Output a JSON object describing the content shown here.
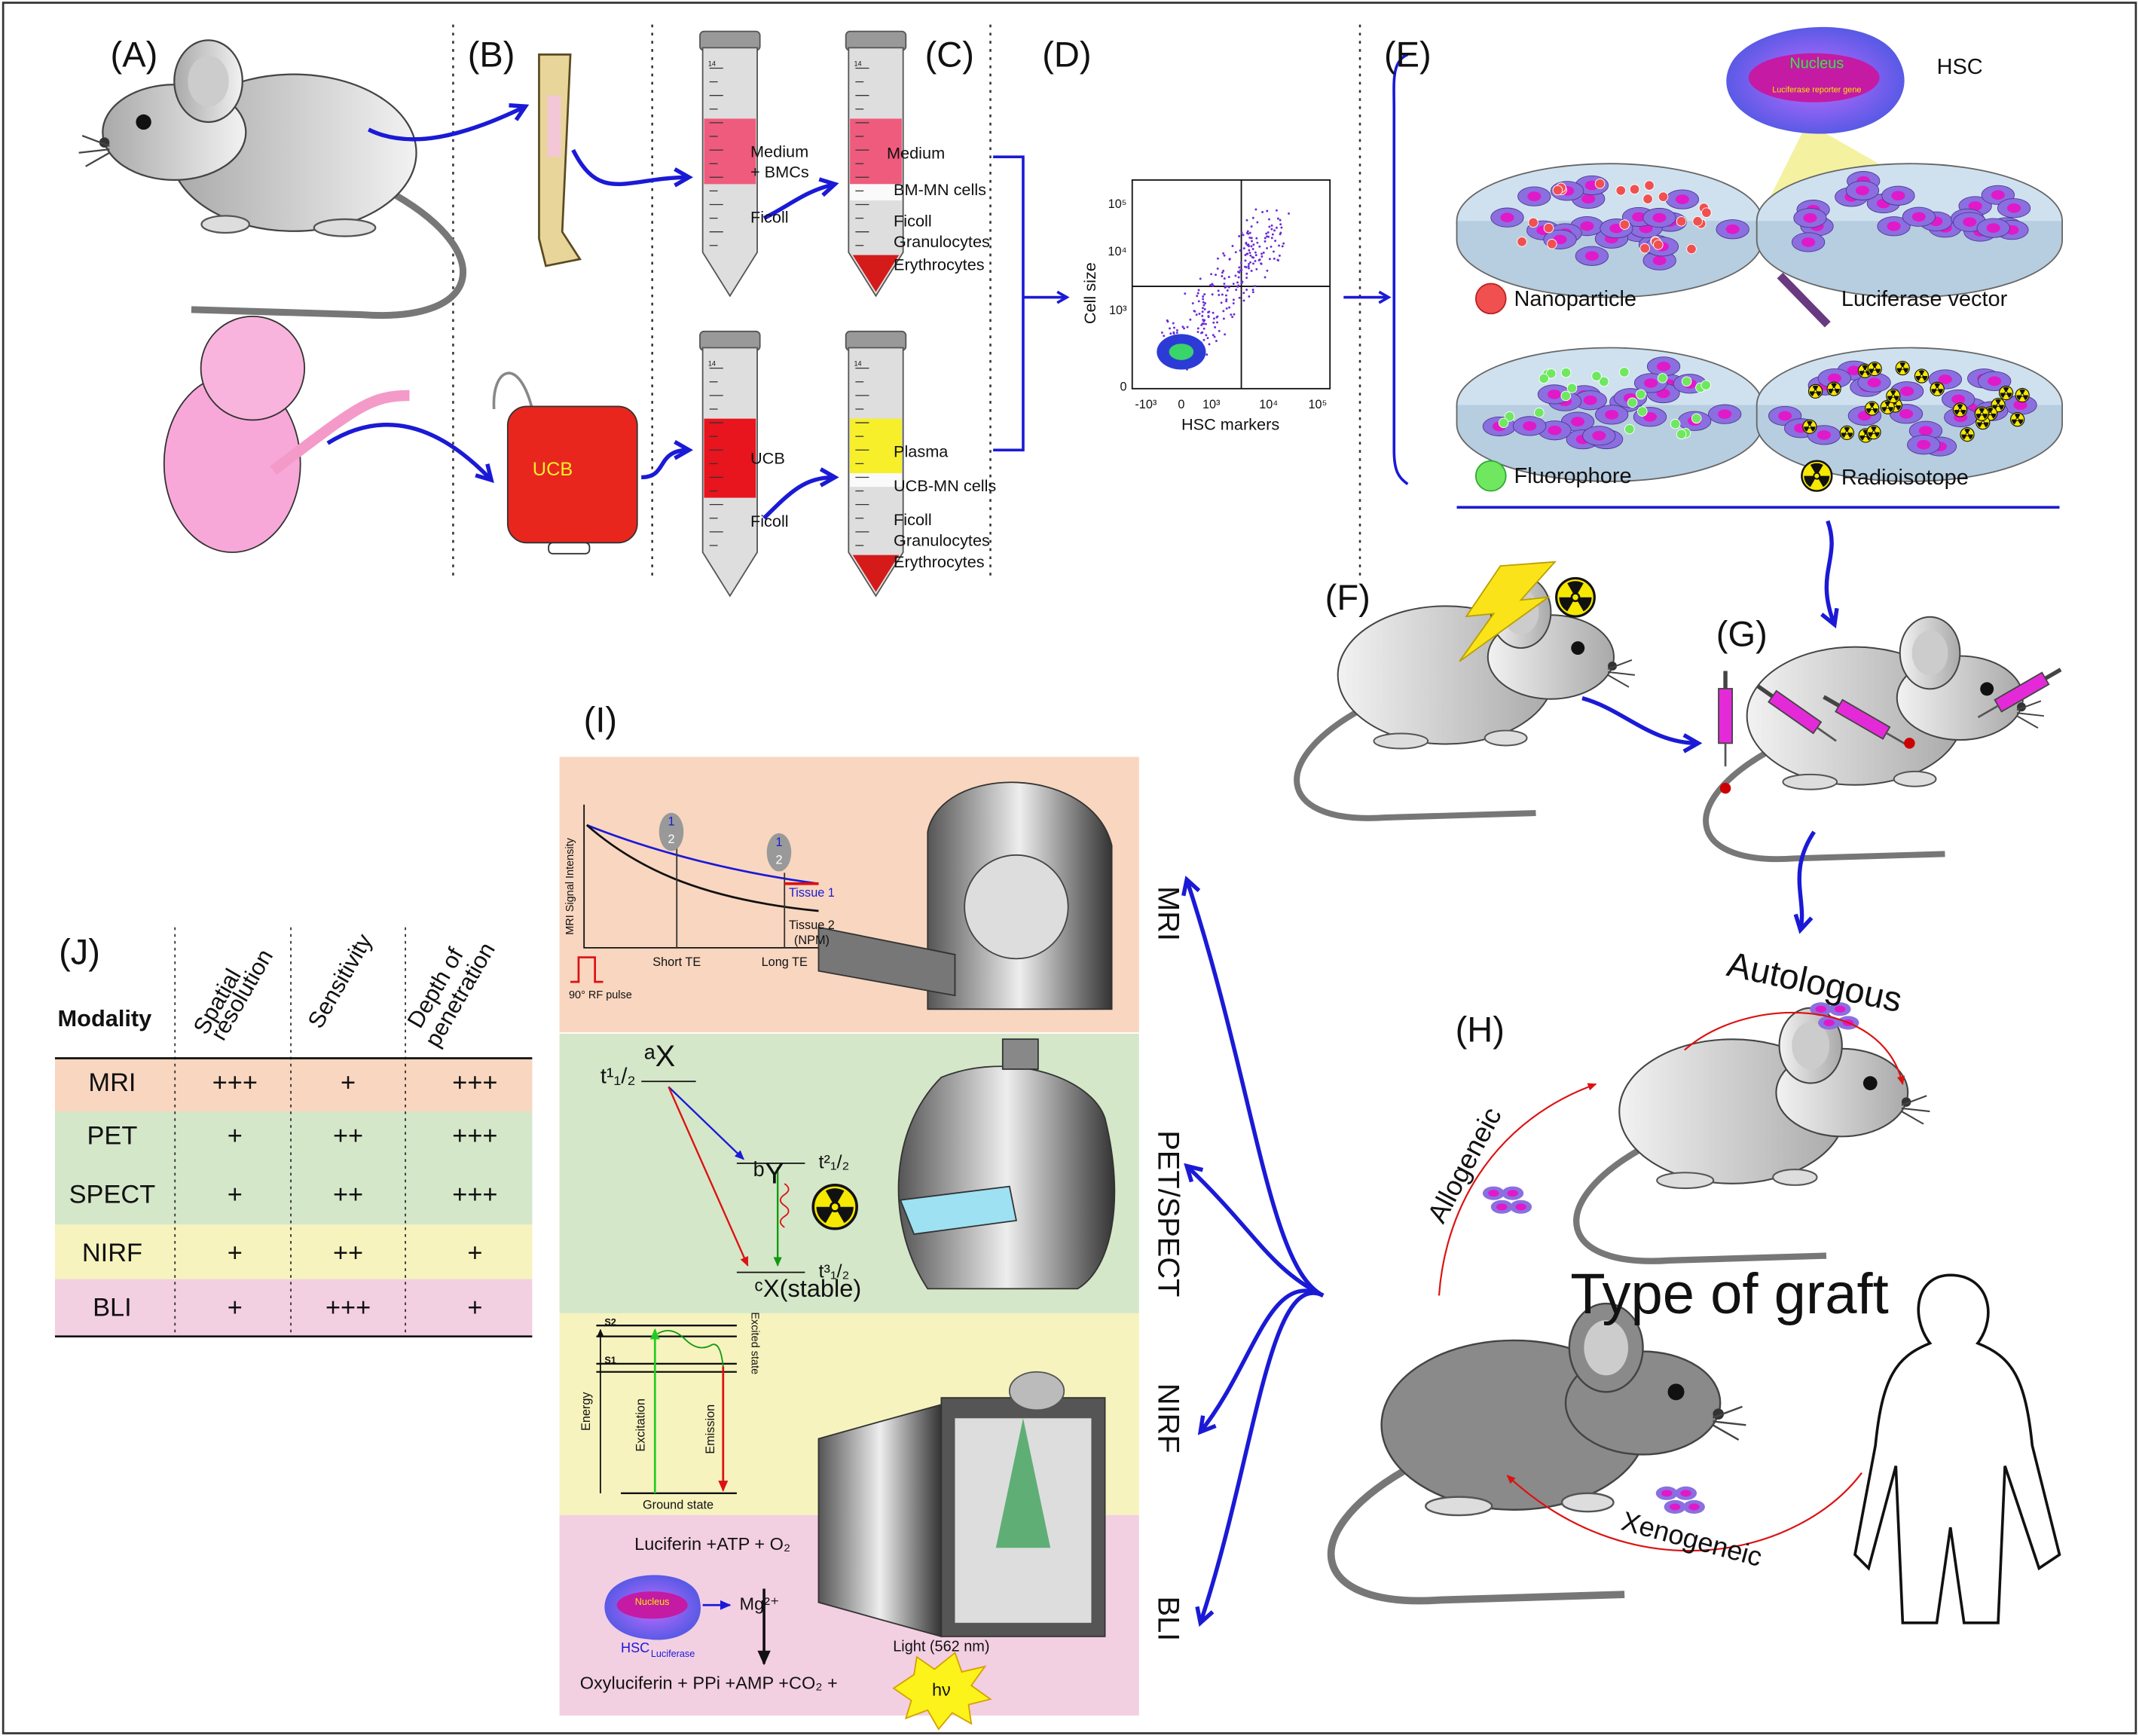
{
  "labels": [
    "(A)",
    "(B)",
    "(C)",
    "(D)",
    "(E)",
    "(F)",
    "(G)",
    "(H)",
    "(I)",
    "(J)"
  ],
  "panel_c": {
    "tube_scale_top": "14",
    "bm_tube_1": [
      "Medium",
      "+ BMCs",
      "Ficoll"
    ],
    "bm_tube_2": [
      "Medium",
      "BM-MN cells",
      "Ficoll",
      "Granulocytes",
      "Erythrocytes"
    ],
    "ucb_tube_1": [
      "UCB",
      "Ficoll"
    ],
    "ucb_tube_2": [
      "Plasma",
      "UCB-MN cells",
      "Ficoll",
      "Granulocytes",
      "Erythrocytes"
    ]
  },
  "ucb_bag": "UCB",
  "panel_d": {
    "y_label": "Cell size",
    "x_label": "HSC markers",
    "yticks": [
      "10⁵",
      "10⁴",
      "10³",
      "0"
    ],
    "xticks": [
      "-10³",
      "0",
      "10³",
      "10⁴",
      "10⁵"
    ]
  },
  "panel_e": {
    "cell": "HSC",
    "nucleus": "Nucleus",
    "reporter": "Luciferase reporter gene",
    "legend": [
      "Nanoparticle",
      "Luciferase vector",
      "Fluorophore",
      "Radioisotope"
    ]
  },
  "panel_h": {
    "autologous": "Autologous",
    "allogeneic": "Allogeneic",
    "xenogeneic": "Xenogeneic",
    "title": "Type of graft"
  },
  "panel_i": {
    "modalities": [
      "MRI",
      "PET/SPECT",
      "NIRF",
      "BLI"
    ],
    "mri": {
      "y_axis": "MRI Signal Intensity",
      "short_te": "Short TE",
      "long_te": "Long TE",
      "tissue_1": "Tissue 1",
      "tissue_2": "Tissue 2",
      "tissue_2_note": "(NPM)",
      "pulse": "90° RF pulse",
      "marker_top": "1",
      "marker_bottom": "2"
    },
    "pet": {
      "half_life_1": "t¹₁/₂",
      "parent": "ᵃX",
      "daughter": "ᵇY",
      "half_life_2": "t²₁/₂",
      "half_life_3": "t³₁/₂",
      "stable": "ᶜX(stable)"
    },
    "nirf": {
      "s2": "S2",
      "s1": "S1",
      "excited": "Excited state",
      "energy": "Energy",
      "excitation": "Excitation",
      "emission": "Emission",
      "ground": "Ground state"
    },
    "bli": {
      "reactants": "Luciferin +ATP + O₂",
      "cofactor": "Mg²⁺",
      "cell": "HSC",
      "cell_subscript": "Luciferase",
      "nucleus": "Nucleus",
      "light": "Light (562 nm)",
      "products": "Oxyluciferin + PPi +AMP +CO₂ +",
      "photon": "hν"
    }
  },
  "table_j": {
    "modality": "Modality",
    "columns": [
      [
        "Spatial",
        "resolution"
      ],
      [
        "Sensitivity"
      ],
      [
        "Depth of",
        "penetration"
      ]
    ],
    "rows": [
      [
        "MRI",
        "+++",
        "+",
        "+++"
      ],
      [
        "PET",
        "+",
        "++",
        "+++"
      ],
      [
        "SPECT",
        "+",
        "++",
        "+++"
      ],
      [
        "NIRF",
        "+",
        "++",
        "+"
      ],
      [
        "BLI",
        "+",
        "+++",
        "+"
      ]
    ]
  }
}
